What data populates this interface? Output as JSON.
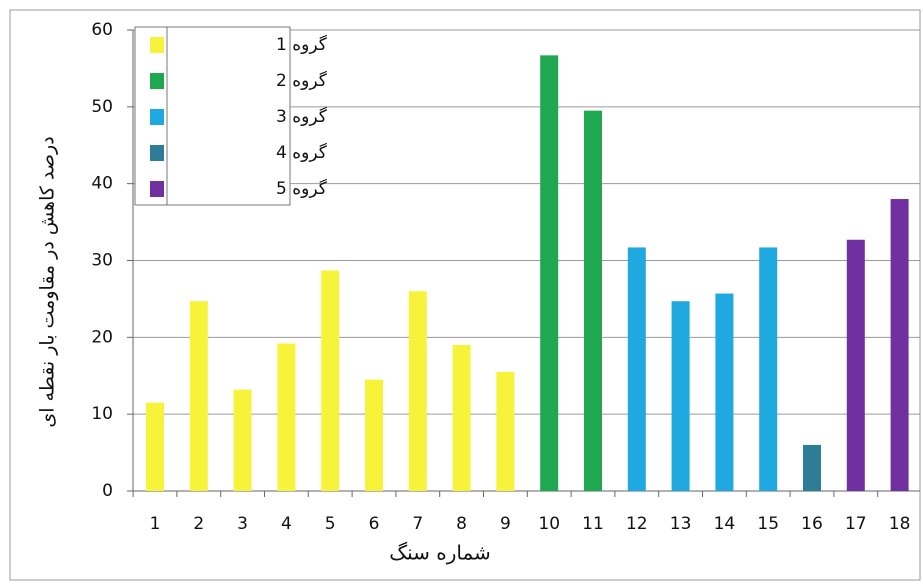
{
  "chart_data": {
    "type": "bar",
    "x_label": "شماره سنگ",
    "y_label": "درصد کاهش در مقاومت بار نقطه ای",
    "categories": [
      "1",
      "2",
      "3",
      "4",
      "5",
      "6",
      "7",
      "8",
      "9",
      "10",
      "11",
      "12",
      "13",
      "14",
      "15",
      "16",
      "17",
      "18"
    ],
    "series": [
      {
        "name": "گروه 1",
        "color": "#f7f33a",
        "values": [
          11.5,
          24.7,
          13.2,
          19.2,
          28.7,
          14.5,
          26,
          19,
          15.5,
          null,
          null,
          null,
          null,
          null,
          null,
          null,
          null,
          null
        ]
      },
      {
        "name": "گروه 2",
        "color": "#1fa84f",
        "values": [
          null,
          null,
          null,
          null,
          null,
          null,
          null,
          null,
          null,
          56.7,
          49.5,
          null,
          null,
          null,
          null,
          null,
          null,
          null
        ]
      },
      {
        "name": "گروه 3",
        "color": "#1fa9e0",
        "values": [
          null,
          null,
          null,
          null,
          null,
          null,
          null,
          null,
          null,
          null,
          null,
          31.7,
          24.7,
          25.7,
          31.7,
          null,
          null,
          null
        ]
      },
      {
        "name": "گروه 4",
        "color": "#2e7d97",
        "values": [
          null,
          null,
          null,
          null,
          null,
          null,
          null,
          null,
          null,
          null,
          null,
          null,
          null,
          null,
          null,
          6,
          null,
          null
        ]
      },
      {
        "name": "گروه 5",
        "color": "#7030a0",
        "values": [
          null,
          null,
          null,
          null,
          null,
          null,
          null,
          null,
          null,
          null,
          null,
          null,
          null,
          null,
          null,
          null,
          32.7,
          38
        ]
      }
    ],
    "ylim": [
      0,
      60
    ],
    "yticks": [
      0,
      10,
      20,
      30,
      40,
      50,
      60
    ],
    "grid": true,
    "legend": "top-left"
  }
}
